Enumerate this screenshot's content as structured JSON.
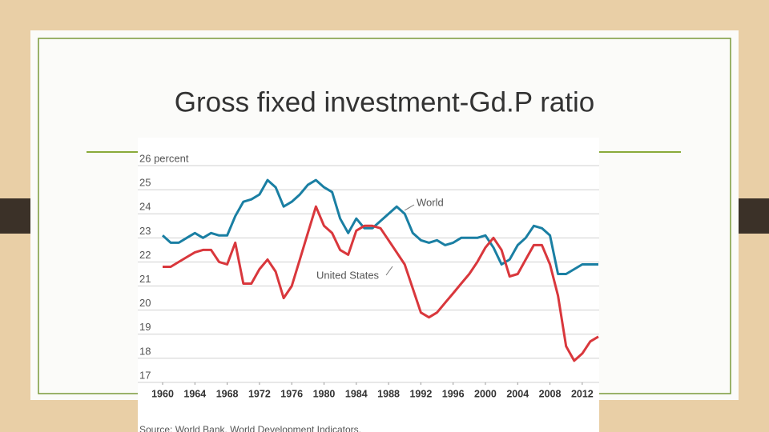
{
  "chart_data": {
    "type": "line",
    "title": "Gross fixed investment-Gd.P ratio",
    "source": "Source: World Bank, World Development Indicators.",
    "x": [
      1960,
      1961,
      1962,
      1963,
      1964,
      1965,
      1966,
      1967,
      1968,
      1969,
      1970,
      1971,
      1972,
      1973,
      1974,
      1975,
      1976,
      1977,
      1978,
      1979,
      1980,
      1981,
      1982,
      1983,
      1984,
      1985,
      1986,
      1987,
      1988,
      1989,
      1990,
      1991,
      1992,
      1993,
      1994,
      1995,
      1996,
      1997,
      1998,
      1999,
      2000,
      2001,
      2002,
      2003,
      2004,
      2005,
      2006,
      2007,
      2008,
      2009,
      2010,
      2011,
      2012,
      2013,
      2014
    ],
    "xlim": [
      1957,
      2014
    ],
    "xticks": [
      1960,
      1964,
      1968,
      1972,
      1976,
      1980,
      1984,
      1988,
      1992,
      1996,
      2000,
      2004,
      2008,
      2012
    ],
    "ylim": [
      17,
      26
    ],
    "yticks": [
      17,
      18,
      19,
      20,
      21,
      22,
      23,
      24,
      25,
      {
        "value": 26,
        "label": "26 percent"
      }
    ],
    "grid": true,
    "series": [
      {
        "name": "World",
        "color": "#1a7fa3",
        "values": [
          23.1,
          22.8,
          22.8,
          23.0,
          23.2,
          23.0,
          23.2,
          23.1,
          23.1,
          23.9,
          24.5,
          24.6,
          24.8,
          25.4,
          25.1,
          24.3,
          24.5,
          24.8,
          25.2,
          25.4,
          25.1,
          24.9,
          23.8,
          23.2,
          23.8,
          23.4,
          23.4,
          23.7,
          24.0,
          24.3,
          24.0,
          23.2,
          22.9,
          22.8,
          22.9,
          22.7,
          22.8,
          23.0,
          23.0,
          23.0,
          23.1,
          22.6,
          21.9,
          22.1,
          22.7,
          23.0,
          23.5,
          23.4,
          23.1,
          21.5,
          21.5,
          21.7,
          21.9,
          21.9,
          21.9
        ]
      },
      {
        "name": "United States",
        "color": "#d9373c",
        "values": [
          21.8,
          21.8,
          22.0,
          22.2,
          22.4,
          22.5,
          22.5,
          22.0,
          21.9,
          22.8,
          21.1,
          21.1,
          21.7,
          22.1,
          21.6,
          20.5,
          21.0,
          22.1,
          23.2,
          24.3,
          23.5,
          23.2,
          22.5,
          22.3,
          23.3,
          23.5,
          23.5,
          23.4,
          22.9,
          22.4,
          21.9,
          20.9,
          19.9,
          19.7,
          19.9,
          20.3,
          20.7,
          21.1,
          21.5,
          22.0,
          22.6,
          23.0,
          22.5,
          21.4,
          21.5,
          22.1,
          22.7,
          22.7,
          21.9,
          20.6,
          18.5,
          17.9,
          18.2,
          18.7,
          18.9
        ]
      }
    ]
  }
}
